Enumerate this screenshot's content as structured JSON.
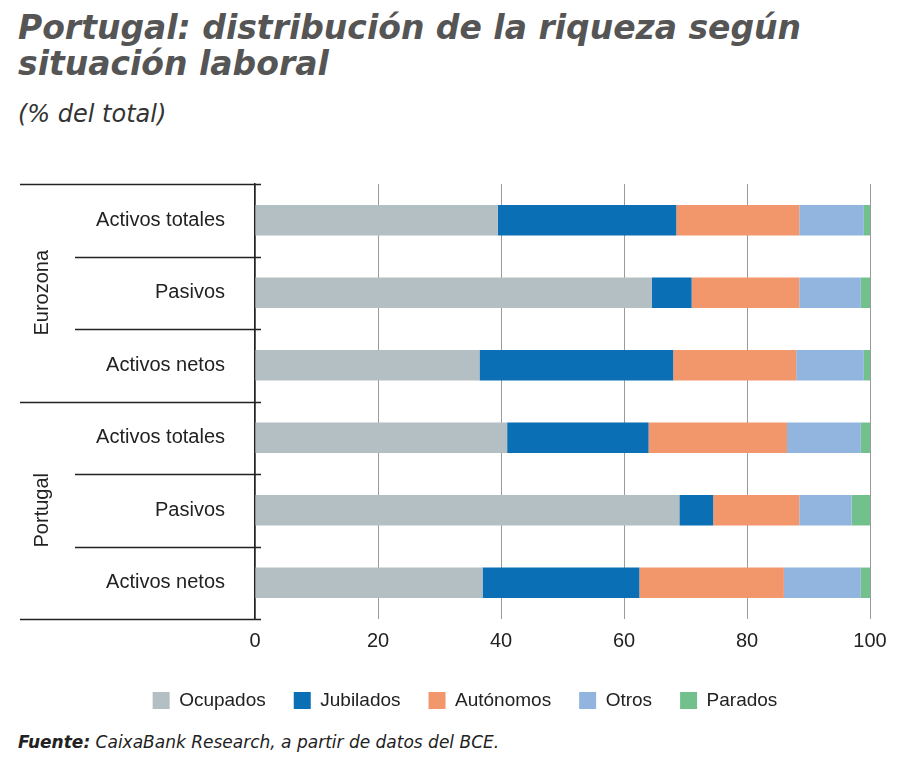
{
  "chart_data": {
    "type": "bar",
    "title": "Portugal: distribución de la riqueza según situación laboral",
    "subtitle": "(% del total)",
    "source_label": "Fuente:",
    "source": "CaixaBank Research, a partir de datos del BCE.",
    "orientation": "horizontal",
    "stacked": true,
    "grid": true,
    "legend": "bottom",
    "categories": [
      "Activos totales",
      "Pasivos",
      "Activos netos",
      "Activos totales",
      "Pasivos",
      "Activos netos"
    ],
    "category_groups": [
      "Eurozona",
      "Eurozona",
      "Eurozona",
      "Portugal",
      "Portugal",
      "Portugal"
    ],
    "xlim": [
      0,
      100
    ],
    "xticks": [
      0,
      20,
      40,
      60,
      80,
      100
    ],
    "series": [
      {
        "name": "Ocupados",
        "color": "#b4bfc4",
        "values": [
          39.5,
          64.5,
          36.5,
          41,
          69,
          37
        ]
      },
      {
        "name": "Jubilados",
        "color": "#0b6fb6",
        "values": [
          29,
          6.5,
          31.5,
          23,
          5.5,
          25.5
        ]
      },
      {
        "name": "Autónomos",
        "color": "#f2966c",
        "values": [
          20,
          17.5,
          20,
          22.5,
          14,
          23.5
        ]
      },
      {
        "name": "Otros",
        "color": "#92b5e0",
        "values": [
          10.5,
          10,
          11,
          12,
          8.5,
          12.5
        ]
      },
      {
        "name": "Parados",
        "color": "#72c08c",
        "values": [
          1,
          1.5,
          1,
          1.5,
          3,
          1.5
        ]
      }
    ]
  }
}
